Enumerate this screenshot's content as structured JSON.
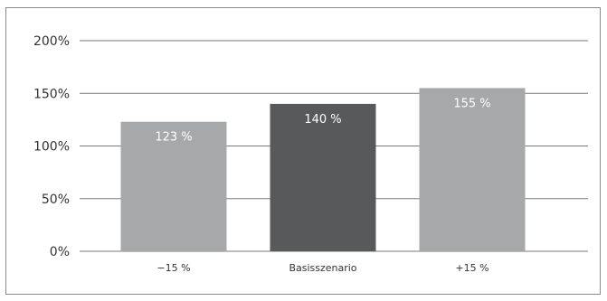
{
  "chart_data": {
    "type": "bar",
    "categories": [
      "−15 %",
      "Basisszenario",
      "+15 %"
    ],
    "values": [
      123,
      140,
      155
    ],
    "data_labels": [
      "123 %",
      "140 %",
      "155 %"
    ],
    "bar_colors": [
      "#a7a8aa",
      "#58595b",
      "#a7a8aa"
    ],
    "y_ticks": [
      0,
      50,
      100,
      150,
      200
    ],
    "y_tick_labels": [
      "0%",
      "50%",
      "100%",
      "150%",
      "200%"
    ],
    "ylim": [
      0,
      200
    ],
    "grid": true,
    "legend": "none",
    "title": "",
    "xlabel": "",
    "ylabel": ""
  }
}
